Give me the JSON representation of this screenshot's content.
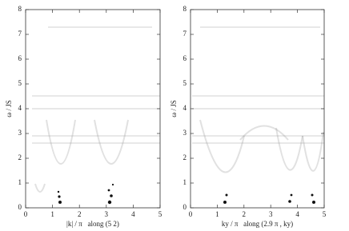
{
  "chart_data": [
    {
      "type": "heatmap",
      "x_label": "|k| / π   along (5 2)",
      "y_label": "ω / JS",
      "xlim": [
        0,
        5
      ],
      "ylim": [
        0,
        8
      ],
      "xticks": [
        0,
        1,
        2,
        3,
        4,
        5
      ],
      "yticks": [
        0,
        1,
        2,
        3,
        4,
        5,
        6,
        7,
        8
      ]
    },
    {
      "type": "heatmap",
      "x_label": "ky / π   along (2.9 π , ky)",
      "y_label": "ω / JS",
      "xlim": [
        0,
        5
      ],
      "ylim": [
        0,
        8
      ],
      "xticks": [
        0,
        1,
        2,
        3,
        4,
        5
      ],
      "yticks": [
        0,
        1,
        2,
        3,
        4,
        5,
        6,
        7,
        8
      ]
    }
  ]
}
